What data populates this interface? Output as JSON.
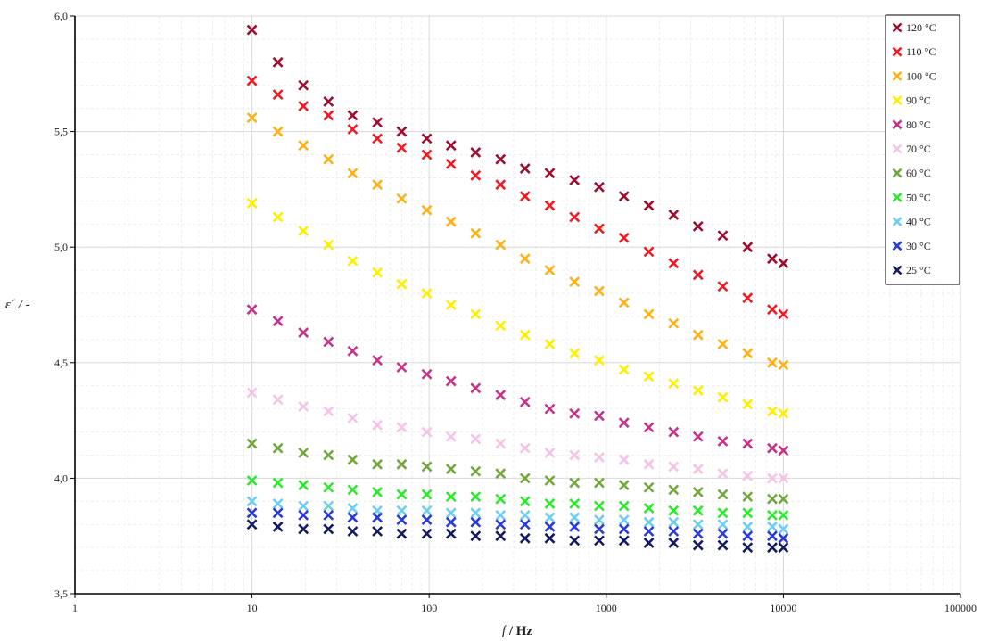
{
  "chart_data": {
    "type": "scatter",
    "xscale": "log",
    "xlim": [
      1,
      100000
    ],
    "ylim": [
      3.5,
      6.0
    ],
    "x_ticks": [
      "1",
      "10",
      "100",
      "1000",
      "10000",
      "100000"
    ],
    "y_ticks": [
      "3,5",
      "4,0",
      "4,5",
      "5,0",
      "5,5",
      "6,0"
    ],
    "xlabel": {
      "italic": "f",
      "rest": " / Hz"
    },
    "ylabel": "ε´ / -",
    "grid": true,
    "legend_position": "top-right",
    "marker": "x",
    "x": [
      10,
      14,
      19.5,
      27,
      37,
      51,
      70,
      97,
      133,
      183,
      253,
      348,
      480,
      662,
      913,
      1260,
      1740,
      2400,
      3300,
      4550,
      6280,
      8660,
      10000
    ],
    "series": [
      {
        "name": "120 °C",
        "color": "#9b1030",
        "values": [
          5.94,
          5.8,
          5.7,
          5.63,
          5.57,
          5.54,
          5.5,
          5.47,
          5.44,
          5.41,
          5.38,
          5.34,
          5.32,
          5.29,
          5.26,
          5.22,
          5.18,
          5.14,
          5.09,
          5.05,
          5.0,
          4.95,
          4.93
        ]
      },
      {
        "name": "110 °C",
        "color": "#ee1b24",
        "values": [
          5.72,
          5.66,
          5.61,
          5.57,
          5.51,
          5.47,
          5.43,
          5.4,
          5.36,
          5.31,
          5.27,
          5.22,
          5.18,
          5.13,
          5.08,
          5.04,
          4.98,
          4.93,
          4.88,
          4.83,
          4.78,
          4.73,
          4.71
        ]
      },
      {
        "name": "100 °C",
        "color": "#fbb117",
        "values": [
          5.56,
          5.5,
          5.44,
          5.38,
          5.32,
          5.27,
          5.21,
          5.16,
          5.11,
          5.06,
          5.01,
          4.95,
          4.9,
          4.85,
          4.81,
          4.76,
          4.71,
          4.67,
          4.62,
          4.58,
          4.54,
          4.5,
          4.49
        ]
      },
      {
        "name": "90 °C",
        "color": "#ffee00",
        "values": [
          5.19,
          5.13,
          5.07,
          5.01,
          4.94,
          4.89,
          4.84,
          4.8,
          4.75,
          4.71,
          4.66,
          4.62,
          4.58,
          4.54,
          4.51,
          4.47,
          4.44,
          4.41,
          4.38,
          4.35,
          4.32,
          4.29,
          4.28
        ]
      },
      {
        "name": "80 °C",
        "color": "#c4348a",
        "values": [
          4.73,
          4.68,
          4.63,
          4.59,
          4.55,
          4.51,
          4.48,
          4.45,
          4.42,
          4.39,
          4.36,
          4.33,
          4.3,
          4.28,
          4.27,
          4.24,
          4.22,
          4.2,
          4.18,
          4.16,
          4.15,
          4.13,
          4.12
        ]
      },
      {
        "name": "70 °C",
        "color": "#f5c3e6",
        "values": [
          4.37,
          4.34,
          4.31,
          4.29,
          4.26,
          4.23,
          4.22,
          4.2,
          4.18,
          4.17,
          4.15,
          4.13,
          4.11,
          4.1,
          4.09,
          4.08,
          4.06,
          4.05,
          4.04,
          4.02,
          4.01,
          4.0,
          4.0
        ]
      },
      {
        "name": "60 °C",
        "color": "#72a83e",
        "values": [
          4.15,
          4.13,
          4.11,
          4.1,
          4.08,
          4.06,
          4.06,
          4.05,
          4.04,
          4.03,
          4.02,
          4.0,
          3.99,
          3.98,
          3.98,
          3.97,
          3.96,
          3.95,
          3.94,
          3.93,
          3.92,
          3.91,
          3.91
        ]
      },
      {
        "name": "50 °C",
        "color": "#2ee82e",
        "values": [
          3.99,
          3.98,
          3.97,
          3.96,
          3.95,
          3.94,
          3.93,
          3.93,
          3.92,
          3.92,
          3.91,
          3.9,
          3.89,
          3.89,
          3.88,
          3.88,
          3.87,
          3.86,
          3.86,
          3.85,
          3.85,
          3.84,
          3.84
        ]
      },
      {
        "name": "40 °C",
        "color": "#6fcdef",
        "values": [
          3.9,
          3.89,
          3.88,
          3.88,
          3.87,
          3.86,
          3.86,
          3.86,
          3.85,
          3.85,
          3.84,
          3.84,
          3.83,
          3.83,
          3.82,
          3.82,
          3.81,
          3.81,
          3.8,
          3.8,
          3.79,
          3.79,
          3.78
        ]
      },
      {
        "name": "30 °C",
        "color": "#2b3bd6",
        "values": [
          3.85,
          3.85,
          3.84,
          3.84,
          3.83,
          3.83,
          3.82,
          3.82,
          3.81,
          3.81,
          3.8,
          3.8,
          3.79,
          3.79,
          3.78,
          3.78,
          3.77,
          3.77,
          3.76,
          3.76,
          3.75,
          3.75,
          3.74
        ]
      },
      {
        "name": "25 °C",
        "color": "#131a5e",
        "values": [
          3.8,
          3.79,
          3.78,
          3.78,
          3.77,
          3.77,
          3.76,
          3.76,
          3.76,
          3.75,
          3.75,
          3.74,
          3.74,
          3.73,
          3.73,
          3.73,
          3.72,
          3.72,
          3.71,
          3.71,
          3.7,
          3.7,
          3.7
        ]
      }
    ]
  }
}
